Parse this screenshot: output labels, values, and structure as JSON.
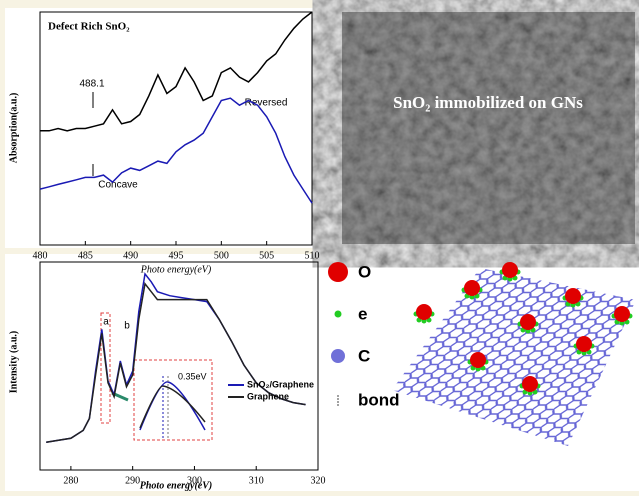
{
  "chart_data": [
    {
      "type": "line",
      "title": "Defect Rich SnO₂",
      "x_label": "Photo energy(eV)",
      "y_label": "Absorption(a.u.)",
      "x": [
        480,
        481,
        482,
        483,
        484,
        485,
        486,
        487,
        488,
        489,
        490,
        491,
        492,
        493,
        494,
        495,
        496,
        497,
        498,
        499,
        500,
        501,
        502,
        503,
        504,
        505,
        506,
        507,
        508,
        509,
        510
      ],
      "xlim": [
        480,
        510
      ],
      "xticks": [
        480,
        485,
        490,
        495,
        500,
        505,
        510
      ],
      "ylim": [
        0,
        10
      ],
      "series": [
        {
          "color": "#000000",
          "values": [
            4.9,
            4.9,
            5.0,
            4.9,
            5.0,
            5.0,
            5.1,
            5.2,
            5.8,
            5.2,
            5.3,
            5.6,
            6.4,
            7.3,
            6.5,
            6.8,
            7.6,
            7.0,
            6.2,
            6.4,
            7.4,
            7.6,
            7.2,
            7.0,
            7.4,
            7.9,
            8.2,
            8.8,
            9.3,
            9.7,
            10.0
          ]
        },
        {
          "color": "#1a1ab4",
          "values": [
            2.4,
            2.5,
            2.6,
            2.7,
            2.8,
            2.9,
            2.9,
            3.0,
            2.7,
            3.1,
            3.3,
            3.2,
            3.4,
            3.6,
            3.5,
            4.0,
            4.3,
            4.5,
            4.8,
            5.5,
            6.2,
            6.3,
            6.0,
            6.2,
            6.0,
            5.5,
            4.8,
            3.8,
            3.0,
            2.4,
            1.8
          ]
        }
      ],
      "annotations": [
        "488.1",
        "Concave",
        "Reversed"
      ]
    },
    {
      "type": "line",
      "x_label": "Photo energy(eV)",
      "y_label": "Intensity (a.u.)",
      "x": [
        276,
        278,
        280,
        282,
        283,
        284,
        285,
        286,
        287,
        288,
        289,
        290,
        291,
        292,
        293,
        294,
        296,
        298,
        300,
        302,
        304,
        306,
        308,
        310,
        312,
        314,
        316,
        318
      ],
      "xlim": [
        275,
        320
      ],
      "xticks": [
        280,
        290,
        300,
        310,
        320
      ],
      "ylim": [
        0,
        10.5
      ],
      "series": [
        {
          "name": "SnO₂/Graphene",
          "color": "#1a1ab4",
          "values": [
            1.4,
            1.5,
            1.6,
            2.0,
            2.6,
            5.0,
            7.1,
            4.5,
            3.8,
            5.5,
            4.3,
            5.0,
            8.0,
            9.9,
            9.5,
            9.0,
            8.8,
            8.7,
            8.6,
            8.5,
            7.6,
            6.5,
            5.3,
            4.4,
            3.9,
            3.6,
            3.4,
            3.3
          ]
        },
        {
          "name": "Graphene",
          "color": "#222222",
          "values": [
            1.4,
            1.5,
            1.6,
            2.0,
            2.6,
            4.8,
            6.9,
            4.4,
            3.7,
            5.4,
            4.2,
            4.8,
            7.6,
            9.4,
            9.0,
            8.6,
            8.6,
            8.6,
            8.6,
            8.6,
            7.6,
            6.5,
            5.3,
            4.4,
            3.9,
            3.6,
            3.4,
            3.3
          ]
        }
      ],
      "annotations": [
        "a",
        "b",
        "0.35eV"
      ]
    }
  ],
  "sem_image": {
    "label": "SnO₂ immobilized on GNs"
  },
  "schematic": {
    "legend": [
      "O",
      "e",
      "C",
      "bond"
    ]
  }
}
